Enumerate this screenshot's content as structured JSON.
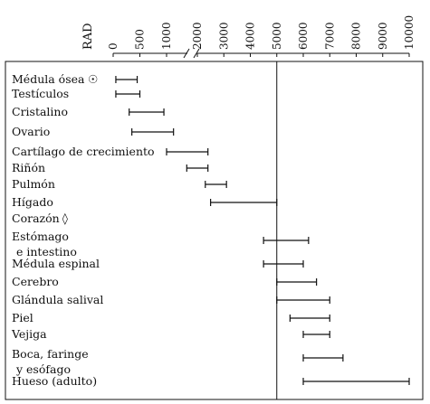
{
  "chart_data": {
    "type": "range",
    "ylabel": "RAD",
    "x_ticks": [
      "0",
      "500",
      "1000",
      "2000",
      "3000",
      "4000",
      "5000",
      "6000",
      "7000",
      "8000",
      "9000",
      "10000"
    ],
    "axis_break": "between 1000 and 2000",
    "reference_line": 5000,
    "rows": [
      {
        "label": [
          "Médula ósea"
        ],
        "marker": "☉",
        "low": 50,
        "high": 450
      },
      {
        "label": [
          "Testículos"
        ],
        "low": 50,
        "high": 500
      },
      {
        "label": [
          "Cristalino"
        ],
        "low": 300,
        "high": 950
      },
      {
        "label": [
          "Ovario"
        ],
        "low": 350,
        "high": 1100
      },
      {
        "label": [
          "Cartílago de crecimiento"
        ],
        "low": 1000,
        "high": 2400
      },
      {
        "label": [
          "Riñón"
        ],
        "low": 1600,
        "high": 2400
      },
      {
        "label": [
          "Pulmón"
        ],
        "low": 2300,
        "high": 3100
      },
      {
        "label": [
          "Hígado"
        ],
        "low": 2500,
        "high": 5000
      },
      {
        "label": [
          "Corazón"
        ],
        "marker": "◊",
        "low": null,
        "high": null
      },
      {
        "label": [
          "Estómago",
          "e intestino"
        ],
        "low": 4500,
        "high": 6200
      },
      {
        "label": [
          "Médula espinal"
        ],
        "low": 4500,
        "high": 6000
      },
      {
        "label": [
          "Cerebro"
        ],
        "low": 5000,
        "high": 6500
      },
      {
        "label": [
          "Glándula salival"
        ],
        "low": 5000,
        "high": 7000
      },
      {
        "label": [
          "Piel"
        ],
        "low": 5500,
        "high": 7000
      },
      {
        "label": [
          "Vejiga"
        ],
        "low": 6000,
        "high": 7000
      },
      {
        "label": [
          "Boca, faringe",
          "y esófago"
        ],
        "low": 6000,
        "high": 7500
      },
      {
        "label": [
          "Hueso (adulto)"
        ],
        "low": 6000,
        "high": 10000
      }
    ]
  }
}
